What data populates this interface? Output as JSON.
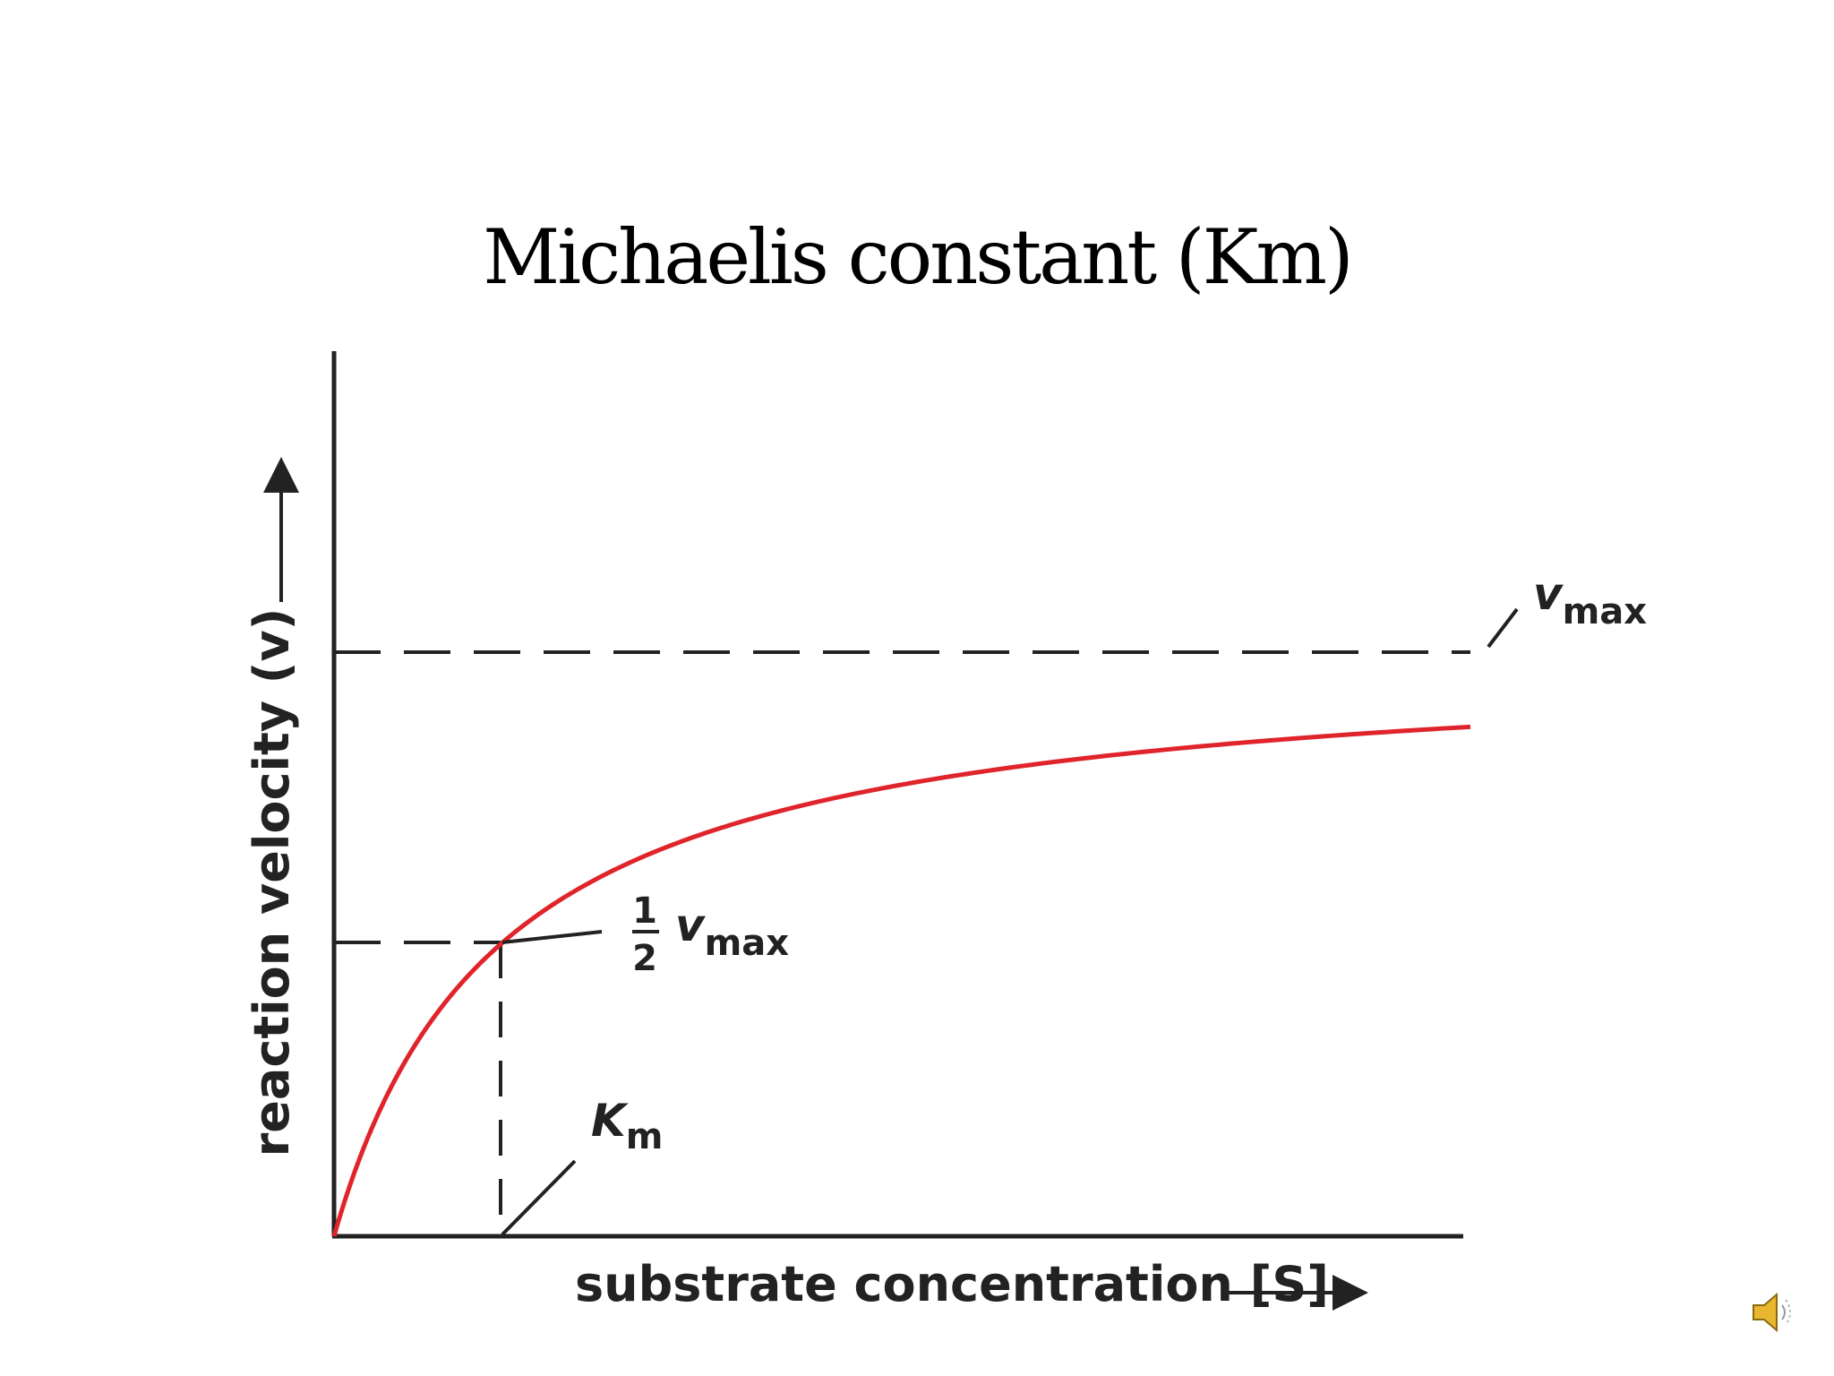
{
  "slide": {
    "title": "Michaelis constant (Km)"
  },
  "chart_data": {
    "type": "line",
    "xlabel": "substrate concentration [S]",
    "ylabel": "reaction velocity (v)",
    "vmax": 1,
    "km": 1,
    "xlim": [
      0,
      6.85
    ],
    "ylim": [
      0,
      1
    ],
    "series": [
      {
        "color": "#e0242b",
        "function": "v = Vmax·[S] / (Km + [S])"
      }
    ],
    "annotations": {
      "vmax": {
        "symbol": "v",
        "subscript": "max"
      },
      "half_vmax": {
        "numerator": "1",
        "denominator": "2",
        "symbol": "v",
        "subscript": "max"
      },
      "km": {
        "symbol": "K",
        "subscript": "m"
      }
    },
    "colors": {
      "curve": "#e0242b",
      "axes": "#222222"
    }
  },
  "audio": {
    "icon": "speaker-icon"
  }
}
